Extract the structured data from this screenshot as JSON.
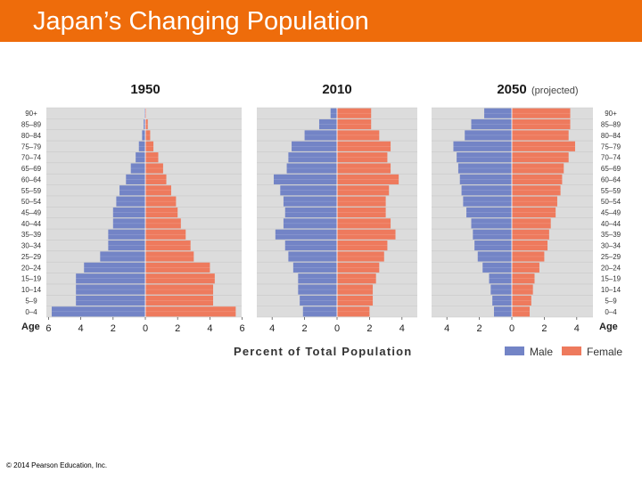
{
  "slide": {
    "title": "Japan’s Changing Population",
    "copyright": "© 2014 Pearson Education, Inc."
  },
  "colors": {
    "header": "#ee6c0b",
    "male": "#7384c6",
    "female": "#ee7a5d",
    "panel": "#dcdcdc"
  },
  "chart_data": {
    "type": "bar",
    "subtype": "population-pyramid",
    "xlabel": "Percent of Total Population",
    "ylabel": "Age",
    "age_groups": [
      "0–4",
      "5–9",
      "10–14",
      "15–19",
      "20–24",
      "25–29",
      "30–34",
      "35–39",
      "40–44",
      "45–49",
      "50–54",
      "55–59",
      "60–64",
      "65–69",
      "70–74",
      "75–79",
      "80–84",
      "85–89",
      "90+"
    ],
    "legend": [
      {
        "name": "Male",
        "color": "#7384c6"
      },
      {
        "name": "Female",
        "color": "#ee7a5d"
      }
    ],
    "panels": [
      {
        "title": "1950",
        "note": "",
        "xticks": [
          "6",
          "4",
          "2",
          "0",
          "2",
          "4",
          "6"
        ],
        "male": [
          5.8,
          4.3,
          4.3,
          4.3,
          3.8,
          2.8,
          2.3,
          2.3,
          2.0,
          2.0,
          1.8,
          1.6,
          1.2,
          0.9,
          0.6,
          0.4,
          0.2,
          0.1,
          0.05
        ],
        "female": [
          5.6,
          4.2,
          4.2,
          4.3,
          4.0,
          3.0,
          2.8,
          2.5,
          2.2,
          2.0,
          1.9,
          1.6,
          1.3,
          1.1,
          0.8,
          0.5,
          0.3,
          0.15,
          0.05
        ]
      },
      {
        "title": "2010",
        "note": "",
        "xticks": [
          "4",
          "2",
          "0",
          "2",
          "4"
        ],
        "male": [
          2.1,
          2.3,
          2.4,
          2.4,
          2.7,
          3.0,
          3.2,
          3.8,
          3.3,
          3.2,
          3.3,
          3.5,
          3.9,
          3.1,
          3.0,
          2.8,
          2.0,
          1.1,
          0.4
        ],
        "female": [
          2.0,
          2.2,
          2.2,
          2.4,
          2.6,
          2.9,
          3.1,
          3.6,
          3.3,
          3.0,
          3.0,
          3.2,
          3.8,
          3.3,
          3.1,
          3.3,
          2.6,
          2.1,
          2.1
        ]
      },
      {
        "title": "2050",
        "note": "(projected)",
        "xticks": [
          "4",
          "2",
          "0",
          "2",
          "4"
        ],
        "male": [
          1.1,
          1.2,
          1.3,
          1.4,
          1.8,
          2.1,
          2.3,
          2.4,
          2.5,
          2.8,
          3.0,
          3.1,
          3.2,
          3.3,
          3.4,
          3.6,
          2.9,
          2.5,
          1.7
        ],
        "female": [
          1.1,
          1.2,
          1.3,
          1.4,
          1.7,
          2.0,
          2.2,
          2.3,
          2.4,
          2.7,
          2.8,
          3.0,
          3.1,
          3.2,
          3.5,
          3.9,
          3.5,
          3.6,
          3.6
        ]
      }
    ]
  }
}
